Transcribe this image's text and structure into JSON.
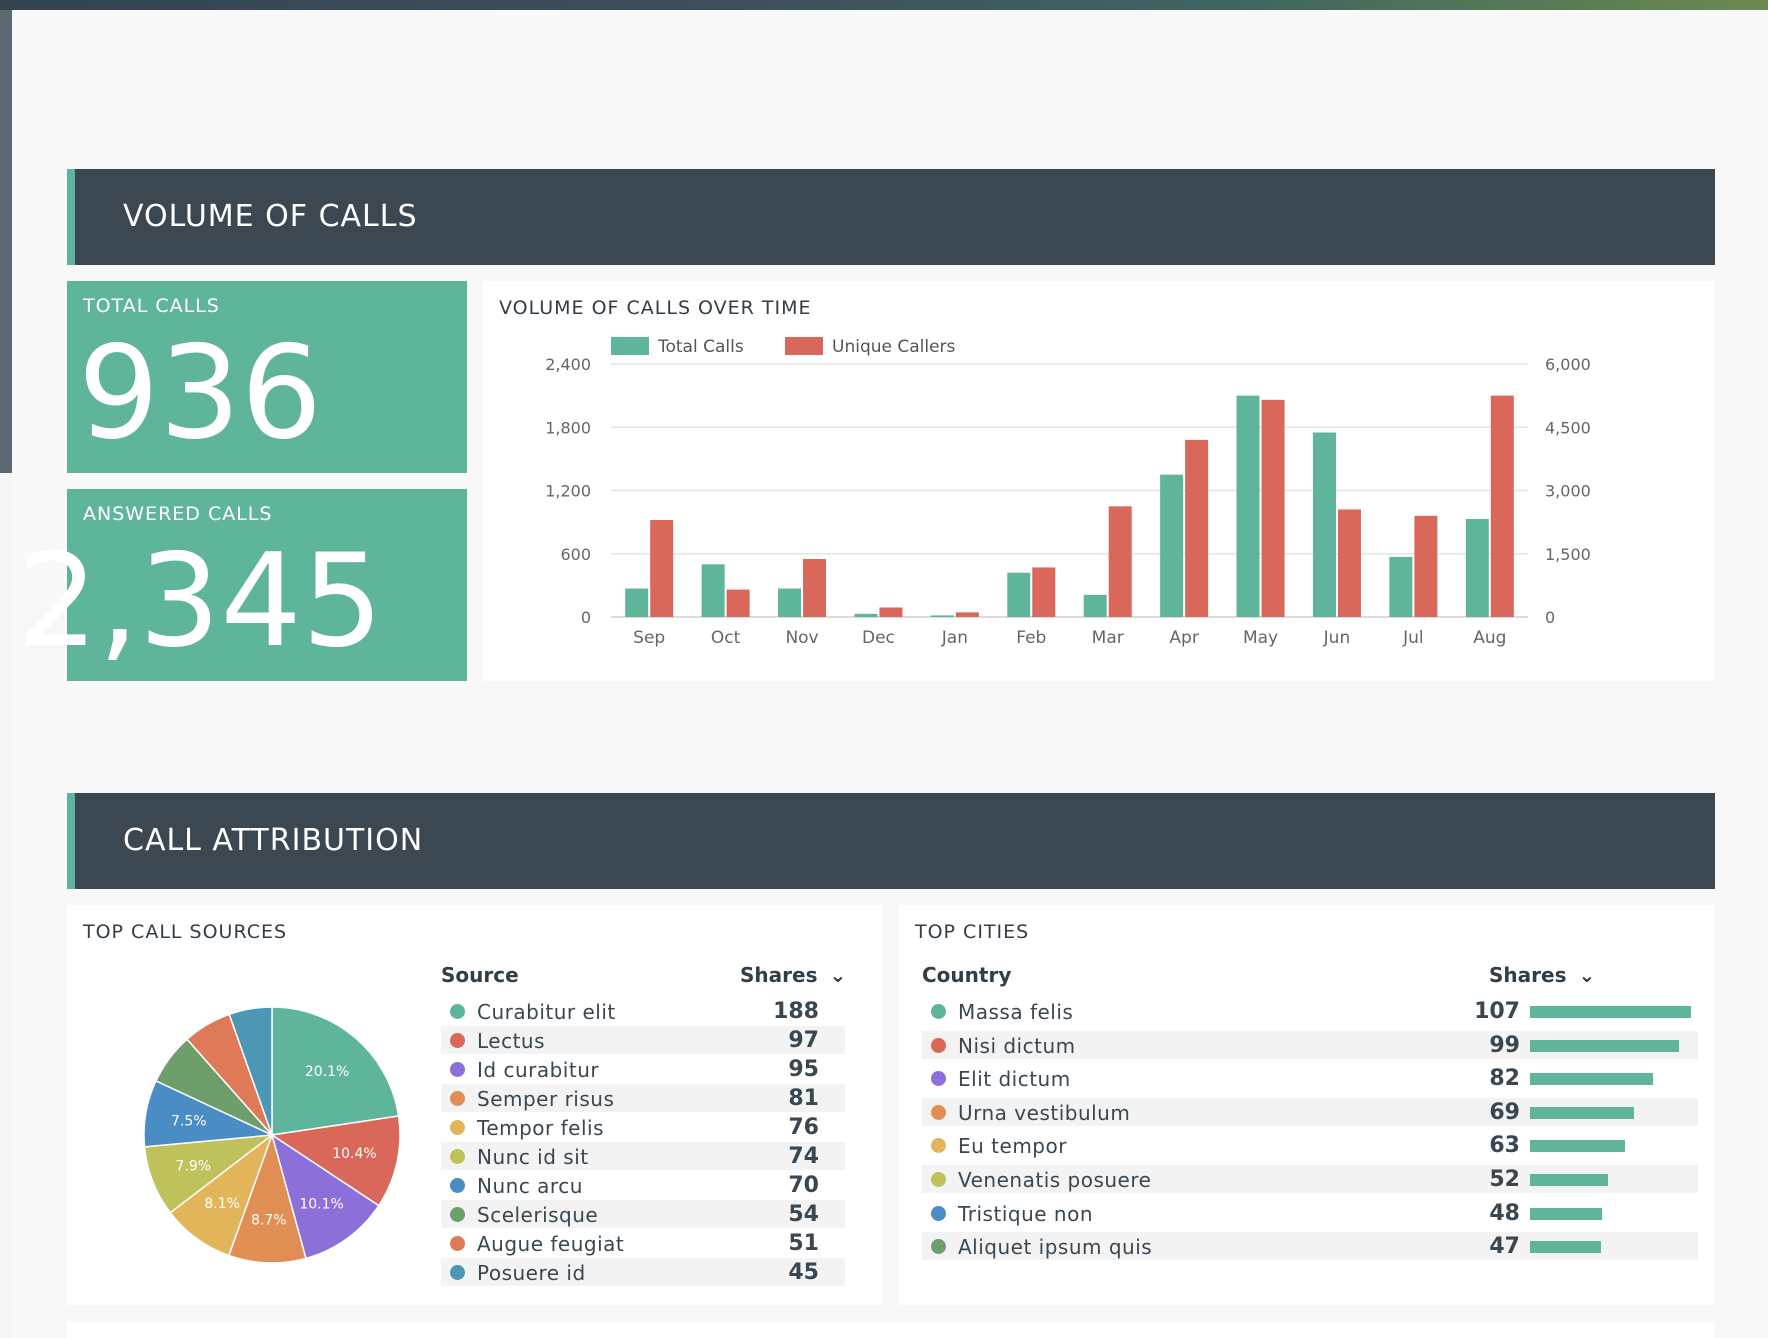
{
  "sections": {
    "volume": "VOLUME OF CALLS",
    "attribution": "CALL ATTRIBUTION"
  },
  "kpis": {
    "total_calls": {
      "label": "TOTAL CALLS",
      "value": "936"
    },
    "answered_calls": {
      "label": "ANSWERED CALLS",
      "value": "2,345"
    }
  },
  "volume_chart": {
    "title": "VOLUME OF CALLS OVER TIME"
  },
  "chart_data": [
    {
      "type": "bar",
      "title": "VOLUME OF CALLS OVER TIME",
      "categories": [
        "Sep",
        "Oct",
        "Nov",
        "Dec",
        "Jan",
        "Feb",
        "Mar",
        "Apr",
        "May",
        "Jun",
        "Jul",
        "Aug"
      ],
      "series": [
        {
          "name": "Total Calls",
          "axis": "left",
          "color": "#5fb49c",
          "values": [
            270,
            500,
            270,
            30,
            15,
            420,
            210,
            1350,
            2100,
            1750,
            570,
            930
          ]
        },
        {
          "name": "Unique Callers",
          "axis": "right",
          "color": "#d9675a",
          "values": [
            2300,
            650,
            1375,
            225,
            110,
            1175,
            2625,
            4200,
            5150,
            2550,
            2400,
            5250
          ]
        }
      ],
      "left_axis": {
        "ticks": [
          0,
          600,
          1200,
          1800,
          2400
        ],
        "tick_labels": [
          "0",
          "600",
          "1,200",
          "1,800",
          "2,400"
        ],
        "ylim": [
          0,
          2400
        ]
      },
      "right_axis": {
        "ticks": [
          0,
          1500,
          3000,
          4500,
          6000
        ],
        "tick_labels": [
          "0",
          "1,500",
          "3,000",
          "4,500",
          "6,000"
        ],
        "ylim": [
          0,
          6000
        ]
      },
      "legend": "top-left",
      "grid": true
    },
    {
      "type": "pie",
      "title": "TOP CALL SOURCES",
      "labels": [
        "Curabitur elit",
        "Lectus",
        "Id curabitur",
        "Semper risus",
        "Tempor felis",
        "Nunc id sit",
        "Nunc arcu",
        "Scelerisque",
        "Augue feugiat",
        "Posuere id"
      ],
      "values": [
        188,
        97,
        95,
        81,
        76,
        74,
        70,
        54,
        51,
        45
      ],
      "slice_labels": [
        "20.1%",
        "10.4%",
        "10.1%",
        "8.7%",
        "8.1%",
        "7.9%",
        "7.5%",
        "",
        "",
        ""
      ],
      "colors": [
        "#5fb49c",
        "#d9675a",
        "#8c6fd9",
        "#e08e54",
        "#e2b55a",
        "#bfc25a",
        "#4a8cc4",
        "#6e9e6b",
        "#de7a57",
        "#4b97b4"
      ]
    }
  ],
  "top_sources": {
    "title": "TOP CALL SOURCES",
    "col_source": "Source",
    "col_shares": "Shares",
    "rows": [
      {
        "name": "Curabitur elit",
        "value": "188",
        "color": "#5fb49c"
      },
      {
        "name": "Lectus",
        "value": "97",
        "color": "#d9675a"
      },
      {
        "name": "Id curabitur",
        "value": "95",
        "color": "#8c6fd9"
      },
      {
        "name": "Semper risus",
        "value": "81",
        "color": "#e08e54"
      },
      {
        "name": "Tempor felis",
        "value": "76",
        "color": "#e2b55a"
      },
      {
        "name": "Nunc id sit",
        "value": "74",
        "color": "#bfc25a"
      },
      {
        "name": "Nunc arcu",
        "value": "70",
        "color": "#4a8cc4"
      },
      {
        "name": "Scelerisque",
        "value": "54",
        "color": "#6e9e6b"
      },
      {
        "name": "Augue feugiat",
        "value": "51",
        "color": "#de7a57"
      },
      {
        "name": "Posuere id",
        "value": "45",
        "color": "#4b97b4"
      }
    ]
  },
  "top_cities": {
    "title": "TOP CITIES",
    "col_country": "Country",
    "col_shares": "Shares",
    "max": 107,
    "rows": [
      {
        "name": "Massa felis",
        "value": "107",
        "color": "#5fb49c"
      },
      {
        "name": "Nisi dictum",
        "value": "99",
        "color": "#d9675a"
      },
      {
        "name": "Elit dictum",
        "value": "82",
        "color": "#8c6fd9"
      },
      {
        "name": "Urna vestibulum",
        "value": "69",
        "color": "#e08e54"
      },
      {
        "name": "Eu tempor",
        "value": "63",
        "color": "#e2b55a"
      },
      {
        "name": "Venenatis posuere",
        "value": "52",
        "color": "#bfc25a"
      },
      {
        "name": "Tristique non",
        "value": "48",
        "color": "#4a8cc4"
      },
      {
        "name": "Aliquet ipsum quis",
        "value": "47",
        "color": "#6e9e6b"
      }
    ]
  }
}
